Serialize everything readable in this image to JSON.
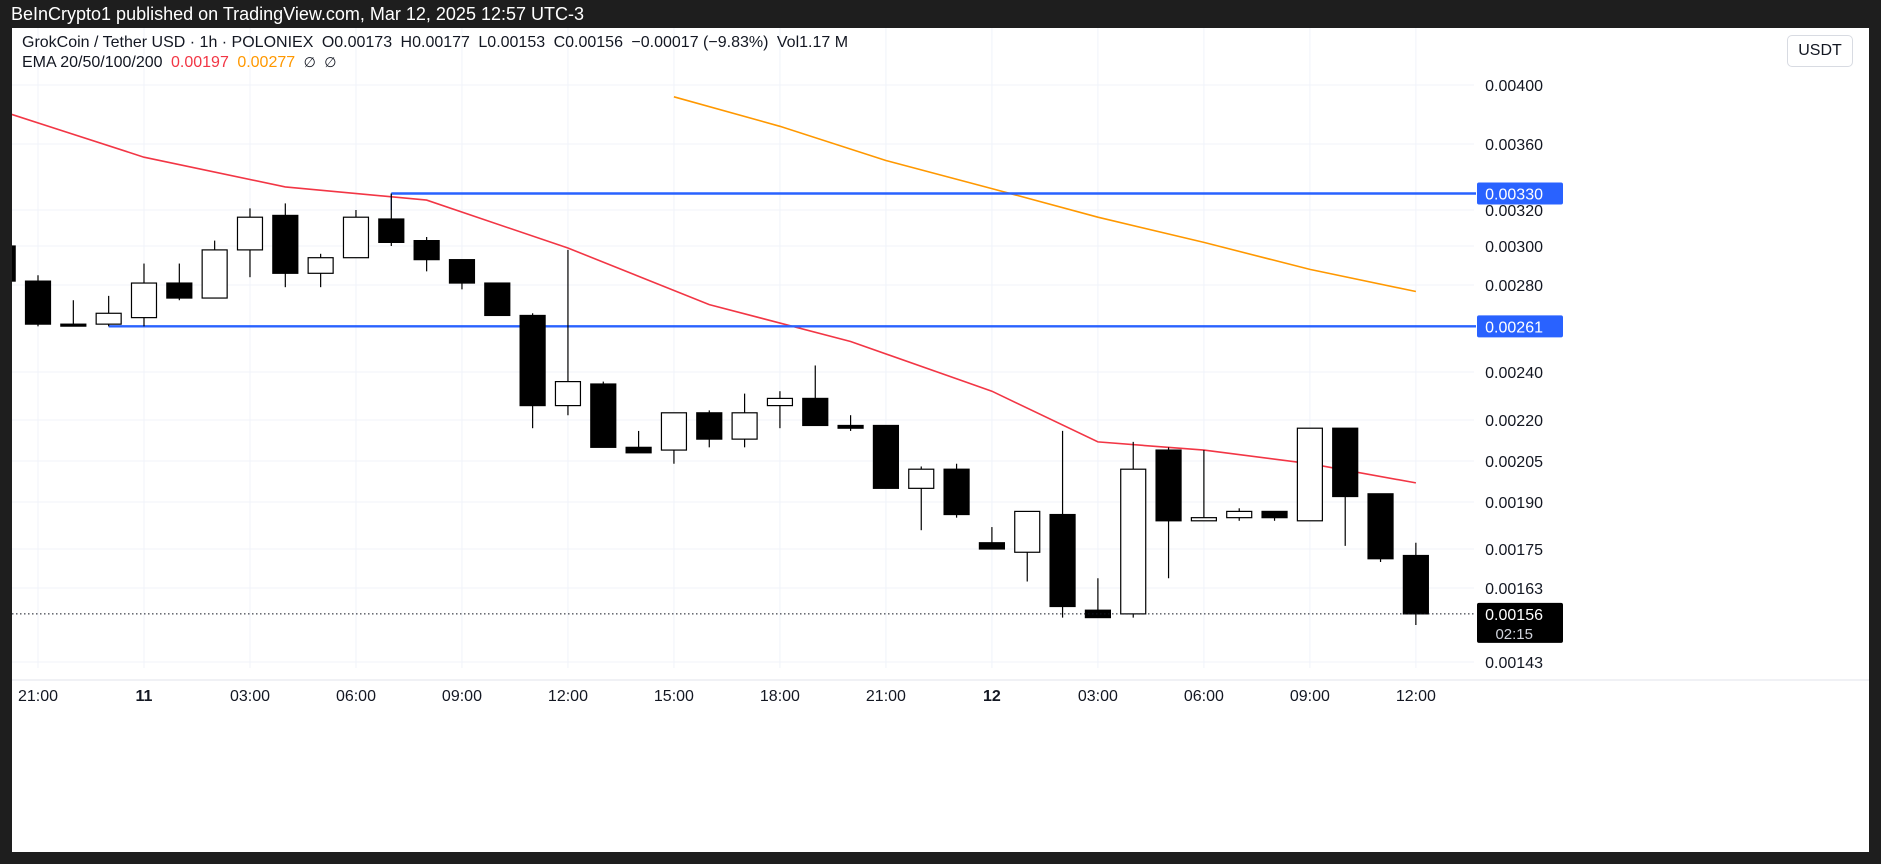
{
  "header": {
    "published": "BeInCrypto1 published on TradingView.com, Mar 12, 2025 12:57 UTC-3"
  },
  "legend": {
    "symbol": "GrokCoin / Tether USD · 1h · POLONIEX",
    "open": "O0.00173",
    "high": "H0.00177",
    "low": "L0.00153",
    "close": "C0.00156",
    "change": "−0.00017 (−9.83%)",
    "volume": "Vol1.17 M",
    "ema_label": "EMA 20/50/100/200",
    "ema20": "0.00197",
    "ema50": "0.00277",
    "ema100": "∅",
    "ema200": "∅"
  },
  "currency_button": "USDT",
  "colors": {
    "ema20": "#f23645",
    "ema50": "#ff9800",
    "level": "#2962ff",
    "candle_down": "#000000",
    "candle_up": "#ffffff"
  },
  "chart_data": {
    "type": "candlestick",
    "interval": "1h",
    "y_axis_ticks": [
      "0.00400",
      "0.00360",
      "0.00320",
      "0.00300",
      "0.00280",
      "0.00240",
      "0.00220",
      "0.00205",
      "0.00190",
      "0.00175",
      "0.00163",
      "0.00143"
    ],
    "x_axis_ticks": [
      "21:00",
      "11",
      "03:00",
      "06:00",
      "09:00",
      "12:00",
      "15:00",
      "18:00",
      "21:00",
      "12",
      "03:00",
      "06:00",
      "09:00",
      "12:00"
    ],
    "candles": [
      {
        "t": "Mar 10 20:00",
        "o": 0.003,
        "h": 0.003,
        "l": 0.00282,
        "c": 0.00282
      },
      {
        "t": "Mar 10 21:00",
        "o": 0.00282,
        "h": 0.00285,
        "l": 0.00261,
        "c": 0.00262
      },
      {
        "t": "Mar 10 22:00",
        "o": 0.00262,
        "h": 0.00273,
        "l": 0.00261,
        "c": 0.00262
      },
      {
        "t": "Mar 10 23:00",
        "o": 0.00262,
        "h": 0.00275,
        "l": 0.00261,
        "c": 0.00267
      },
      {
        "t": "Mar 11 00:00",
        "o": 0.00265,
        "h": 0.00291,
        "l": 0.00261,
        "c": 0.00281
      },
      {
        "t": "Mar 11 01:00",
        "o": 0.00281,
        "h": 0.00291,
        "l": 0.00273,
        "c": 0.00274
      },
      {
        "t": "Mar 11 02:00",
        "o": 0.00274,
        "h": 0.00303,
        "l": 0.00274,
        "c": 0.00298
      },
      {
        "t": "Mar 11 03:00",
        "o": 0.00298,
        "h": 0.00321,
        "l": 0.00284,
        "c": 0.00316
      },
      {
        "t": "Mar 11 04:00",
        "o": 0.00317,
        "h": 0.00324,
        "l": 0.00279,
        "c": 0.00286
      },
      {
        "t": "Mar 11 05:00",
        "o": 0.00286,
        "h": 0.00296,
        "l": 0.00279,
        "c": 0.00294
      },
      {
        "t": "Mar 11 06:00",
        "o": 0.00294,
        "h": 0.0032,
        "l": 0.00294,
        "c": 0.00316
      },
      {
        "t": "Mar 11 07:00",
        "o": 0.00315,
        "h": 0.0033,
        "l": 0.003,
        "c": 0.00302
      },
      {
        "t": "Mar 11 08:00",
        "o": 0.00303,
        "h": 0.00305,
        "l": 0.00287,
        "c": 0.00293
      },
      {
        "t": "Mar 11 09:00",
        "o": 0.00293,
        "h": 0.00293,
        "l": 0.00278,
        "c": 0.00281
      },
      {
        "t": "Mar 11 10:00",
        "o": 0.00281,
        "h": 0.00281,
        "l": 0.00266,
        "c": 0.00266
      },
      {
        "t": "Mar 11 11:00",
        "o": 0.00266,
        "h": 0.00267,
        "l": 0.00217,
        "c": 0.00226
      },
      {
        "t": "Mar 11 12:00",
        "o": 0.00226,
        "h": 0.00298,
        "l": 0.00222,
        "c": 0.00236
      },
      {
        "t": "Mar 11 13:00",
        "o": 0.00235,
        "h": 0.00236,
        "l": 0.0021,
        "c": 0.0021
      },
      {
        "t": "Mar 11 14:00",
        "o": 0.0021,
        "h": 0.00216,
        "l": 0.00208,
        "c": 0.00208
      },
      {
        "t": "Mar 11 15:00",
        "o": 0.00209,
        "h": 0.00223,
        "l": 0.00204,
        "c": 0.00223
      },
      {
        "t": "Mar 11 16:00",
        "o": 0.00223,
        "h": 0.00224,
        "l": 0.0021,
        "c": 0.00213
      },
      {
        "t": "Mar 11 17:00",
        "o": 0.00213,
        "h": 0.00231,
        "l": 0.0021,
        "c": 0.00223
      },
      {
        "t": "Mar 11 18:00",
        "o": 0.00226,
        "h": 0.00232,
        "l": 0.00217,
        "c": 0.00229
      },
      {
        "t": "Mar 11 19:00",
        "o": 0.00229,
        "h": 0.00243,
        "l": 0.00218,
        "c": 0.00218
      },
      {
        "t": "Mar 11 20:00",
        "o": 0.00218,
        "h": 0.00222,
        "l": 0.00216,
        "c": 0.00217
      },
      {
        "t": "Mar 11 21:00",
        "o": 0.00218,
        "h": 0.00218,
        "l": 0.00195,
        "c": 0.00195
      },
      {
        "t": "Mar 11 22:00",
        "o": 0.00195,
        "h": 0.00203,
        "l": 0.00181,
        "c": 0.00202
      },
      {
        "t": "Mar 11 23:00",
        "o": 0.00202,
        "h": 0.00204,
        "l": 0.00185,
        "c": 0.00186
      },
      {
        "t": "Mar 12 00:00",
        "o": 0.00177,
        "h": 0.00182,
        "l": 0.00176,
        "c": 0.00175
      },
      {
        "t": "Mar 12 01:00",
        "o": 0.00174,
        "h": 0.00187,
        "l": 0.00165,
        "c": 0.00187
      },
      {
        "t": "Mar 12 02:00",
        "o": 0.00186,
        "h": 0.00216,
        "l": 0.00155,
        "c": 0.00158
      },
      {
        "t": "Mar 12 03:00",
        "o": 0.00157,
        "h": 0.00166,
        "l": 0.00155,
        "c": 0.00155
      },
      {
        "t": "Mar 12 04:00",
        "o": 0.00156,
        "h": 0.00212,
        "l": 0.00155,
        "c": 0.00202
      },
      {
        "t": "Mar 12 05:00",
        "o": 0.00209,
        "h": 0.0021,
        "l": 0.00166,
        "c": 0.00184
      },
      {
        "t": "Mar 12 06:00",
        "o": 0.00184,
        "h": 0.00209,
        "l": 0.00184,
        "c": 0.00185
      },
      {
        "t": "Mar 12 07:00",
        "o": 0.00185,
        "h": 0.00188,
        "l": 0.00184,
        "c": 0.00187
      },
      {
        "t": "Mar 12 08:00",
        "o": 0.00187,
        "h": 0.00187,
        "l": 0.00184,
        "c": 0.00185
      },
      {
        "t": "Mar 12 09:00",
        "o": 0.00184,
        "h": 0.00217,
        "l": 0.00184,
        "c": 0.00217
      },
      {
        "t": "Mar 12 10:00",
        "o": 0.00217,
        "h": 0.00217,
        "l": 0.00176,
        "c": 0.00192
      },
      {
        "t": "Mar 12 11:00",
        "o": 0.00193,
        "h": 0.00193,
        "l": 0.00171,
        "c": 0.00172
      },
      {
        "t": "Mar 12 12:00",
        "o": 0.00173,
        "h": 0.00177,
        "l": 0.00153,
        "c": 0.00156
      }
    ],
    "ema20": [
      {
        "t": "Mar 10 20:00",
        "v": 0.00382
      },
      {
        "t": "Mar 11 00:00",
        "v": 0.00352
      },
      {
        "t": "Mar 11 04:00",
        "v": 0.00334
      },
      {
        "t": "Mar 11 08:00",
        "v": 0.00326
      },
      {
        "t": "Mar 11 12:00",
        "v": 0.00299
      },
      {
        "t": "Mar 11 16:00",
        "v": 0.00271
      },
      {
        "t": "Mar 11 20:00",
        "v": 0.00254
      },
      {
        "t": "Mar 12 00:00",
        "v": 0.00232
      },
      {
        "t": "Mar 12 03:00",
        "v": 0.00212
      },
      {
        "t": "Mar 12 06:00",
        "v": 0.00209
      },
      {
        "t": "Mar 12 09:00",
        "v": 0.00204
      },
      {
        "t": "Mar 12 12:00",
        "v": 0.00197
      }
    ],
    "ema50": [
      {
        "t": "Mar 11 15:00",
        "v": 0.00392
      },
      {
        "t": "Mar 11 18:00",
        "v": 0.00372
      },
      {
        "t": "Mar 11 21:00",
        "v": 0.0035
      },
      {
        "t": "Mar 12 00:00",
        "v": 0.00333
      },
      {
        "t": "Mar 12 03:00",
        "v": 0.00316
      },
      {
        "t": "Mar 12 06:00",
        "v": 0.00302
      },
      {
        "t": "Mar 12 09:00",
        "v": 0.00288
      },
      {
        "t": "Mar 12 12:00",
        "v": 0.00277
      }
    ],
    "levels": [
      {
        "value": 0.0033,
        "label": "0.00330"
      },
      {
        "value": 0.00261,
        "label": "0.00261"
      }
    ],
    "last_price": {
      "value": 0.00156,
      "label": "0.00156",
      "countdown": "02:15"
    }
  }
}
